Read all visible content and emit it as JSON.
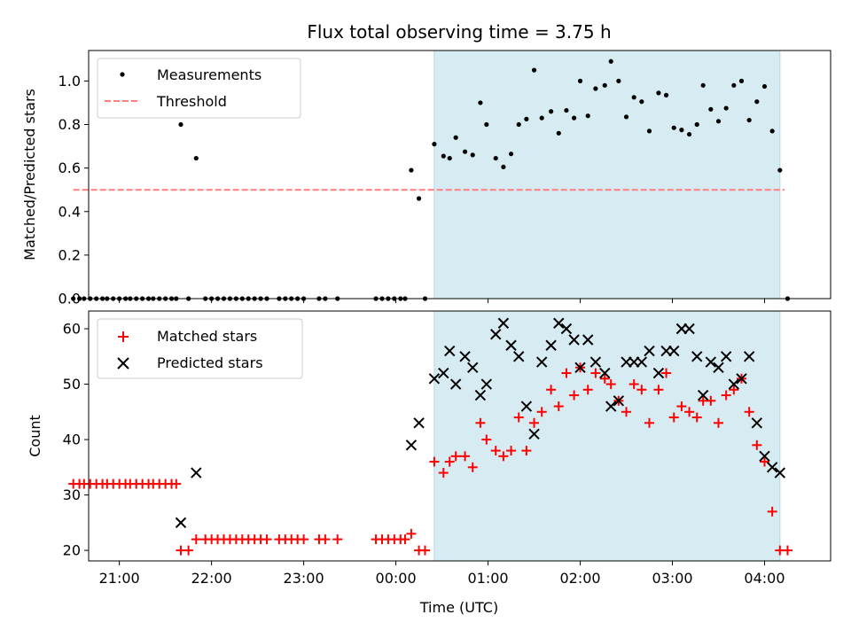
{
  "chart_data": {
    "title": "Flux total observing time = 3.75 h",
    "xlabel": "Time (UTC)",
    "xlim": [
      "20:40",
      "04:43"
    ],
    "x_ticks": [
      "21:00",
      "22:00",
      "23:00",
      "00:00",
      "01:00",
      "02:00",
      "03:00",
      "04:00"
    ],
    "shaded_interval": [
      "00:25",
      "04:10"
    ],
    "colors": {
      "shade": "#add8e6",
      "measurements": "#000000",
      "threshold": "#ff7f7f",
      "matched": "#ff0000",
      "predicted": "#000000"
    },
    "top": {
      "type": "scatter",
      "ylabel": "Matched/Predicted stars",
      "ylim": [
        0.0,
        1.14
      ],
      "y_ticks": [
        "0.0",
        "0.2",
        "0.4",
        "0.6",
        "0.8",
        "1.0"
      ],
      "legend": {
        "position": "top-left",
        "entries": [
          "Measurements",
          "Threshold"
        ]
      },
      "threshold": {
        "value": 0.5,
        "x_range": [
          "20:30",
          "04:13"
        ]
      },
      "measurements": [
        [
          "20:30",
          0
        ],
        [
          "20:34",
          0
        ],
        [
          "20:37",
          0
        ],
        [
          "20:41",
          0
        ],
        [
          "20:45",
          0
        ],
        [
          "20:49",
          0
        ],
        [
          "20:52",
          0
        ],
        [
          "20:56",
          0
        ],
        [
          "21:00",
          0
        ],
        [
          "21:04",
          0
        ],
        [
          "21:07",
          0
        ],
        [
          "21:11",
          0
        ],
        [
          "21:15",
          0
        ],
        [
          "21:19",
          0
        ],
        [
          "21:22",
          0
        ],
        [
          "21:26",
          0
        ],
        [
          "21:30",
          0
        ],
        [
          "21:34",
          0
        ],
        [
          "21:37",
          0
        ],
        [
          "21:40",
          0.8
        ],
        [
          "21:45",
          0
        ],
        [
          "21:50",
          0.645
        ],
        [
          "21:56",
          0
        ],
        [
          "22:00",
          0
        ],
        [
          "22:04",
          0
        ],
        [
          "22:08",
          0
        ],
        [
          "22:12",
          0
        ],
        [
          "22:16",
          0
        ],
        [
          "22:20",
          0
        ],
        [
          "22:24",
          0
        ],
        [
          "22:28",
          0
        ],
        [
          "22:32",
          0
        ],
        [
          "22:36",
          0
        ],
        [
          "22:44",
          0
        ],
        [
          "22:48",
          0
        ],
        [
          "22:52",
          0
        ],
        [
          "22:56",
          0
        ],
        [
          "23:00",
          0
        ],
        [
          "23:10",
          0
        ],
        [
          "23:14",
          0
        ],
        [
          "23:22",
          0
        ],
        [
          "23:47",
          0
        ],
        [
          "23:51",
          0
        ],
        [
          "23:55",
          0
        ],
        [
          "23:59",
          0
        ],
        [
          "00:03",
          0
        ],
        [
          "00:06",
          0
        ],
        [
          "00:10",
          0.59
        ],
        [
          "00:15",
          0.46
        ],
        [
          "00:19",
          0
        ],
        [
          "00:25",
          0.71
        ],
        [
          "00:31",
          0.655
        ],
        [
          "00:35",
          0.645
        ],
        [
          "00:39",
          0.74
        ],
        [
          "00:45",
          0.675
        ],
        [
          "00:50",
          0.66
        ],
        [
          "00:55",
          0.9
        ],
        [
          "00:59",
          0.8
        ],
        [
          "01:05",
          0.645
        ],
        [
          "01:10",
          0.605
        ],
        [
          "01:15",
          0.665
        ],
        [
          "01:20",
          0.8
        ],
        [
          "01:25",
          0.825
        ],
        [
          "01:30",
          1.05
        ],
        [
          "01:35",
          0.83
        ],
        [
          "01:41",
          0.86
        ],
        [
          "01:46",
          0.76
        ],
        [
          "01:51",
          0.865
        ],
        [
          "01:56",
          0.83
        ],
        [
          "02:00",
          1.0
        ],
        [
          "02:05",
          0.84
        ],
        [
          "02:10",
          0.965
        ],
        [
          "02:16",
          0.98
        ],
        [
          "02:20",
          1.09
        ],
        [
          "02:25",
          1.0
        ],
        [
          "02:30",
          0.835
        ],
        [
          "02:35",
          0.925
        ],
        [
          "02:40",
          0.905
        ],
        [
          "02:45",
          0.77
        ],
        [
          "02:51",
          0.945
        ],
        [
          "02:56",
          0.935
        ],
        [
          "03:01",
          0.785
        ],
        [
          "03:06",
          0.775
        ],
        [
          "03:11",
          0.755
        ],
        [
          "03:16",
          0.8
        ],
        [
          "03:20",
          0.98
        ],
        [
          "03:25",
          0.87
        ],
        [
          "03:30",
          0.815
        ],
        [
          "03:35",
          0.875
        ],
        [
          "03:40",
          0.98
        ],
        [
          "03:45",
          1.0
        ],
        [
          "03:50",
          0.82
        ],
        [
          "03:55",
          0.905
        ],
        [
          "04:00",
          0.975
        ],
        [
          "04:05",
          0.77
        ],
        [
          "04:10",
          0.59
        ],
        [
          "04:15",
          0
        ]
      ]
    },
    "bottom": {
      "type": "scatter",
      "ylabel": "Count",
      "ylim": [
        18.1,
        63.2
      ],
      "y_ticks": [
        "20",
        "30",
        "40",
        "50",
        "60"
      ],
      "legend": {
        "position": "top-left",
        "entries": [
          "Matched stars",
          "Predicted stars"
        ]
      },
      "matched": [
        [
          "20:30",
          32
        ],
        [
          "20:34",
          32
        ],
        [
          "20:37",
          32
        ],
        [
          "20:41",
          32
        ],
        [
          "20:45",
          32
        ],
        [
          "20:49",
          32
        ],
        [
          "20:52",
          32
        ],
        [
          "20:56",
          32
        ],
        [
          "21:00",
          32
        ],
        [
          "21:04",
          32
        ],
        [
          "21:07",
          32
        ],
        [
          "21:11",
          32
        ],
        [
          "21:15",
          32
        ],
        [
          "21:19",
          32
        ],
        [
          "21:22",
          32
        ],
        [
          "21:26",
          32
        ],
        [
          "21:30",
          32
        ],
        [
          "21:34",
          32
        ],
        [
          "21:37",
          32
        ],
        [
          "21:40",
          20
        ],
        [
          "21:45",
          20
        ],
        [
          "21:50",
          22
        ],
        [
          "21:56",
          22
        ],
        [
          "22:00",
          22
        ],
        [
          "22:04",
          22
        ],
        [
          "22:08",
          22
        ],
        [
          "22:12",
          22
        ],
        [
          "22:16",
          22
        ],
        [
          "22:20",
          22
        ],
        [
          "22:24",
          22
        ],
        [
          "22:28",
          22
        ],
        [
          "22:32",
          22
        ],
        [
          "22:36",
          22
        ],
        [
          "22:44",
          22
        ],
        [
          "22:48",
          22
        ],
        [
          "22:52",
          22
        ],
        [
          "22:56",
          22
        ],
        [
          "23:00",
          22
        ],
        [
          "23:10",
          22
        ],
        [
          "23:14",
          22
        ],
        [
          "23:22",
          22
        ],
        [
          "23:47",
          22
        ],
        [
          "23:51",
          22
        ],
        [
          "23:55",
          22
        ],
        [
          "23:59",
          22
        ],
        [
          "00:03",
          22
        ],
        [
          "00:06",
          22
        ],
        [
          "00:10",
          23
        ],
        [
          "00:15",
          20
        ],
        [
          "00:19",
          20
        ],
        [
          "00:25",
          36
        ],
        [
          "00:31",
          34
        ],
        [
          "00:35",
          36
        ],
        [
          "00:39",
          37
        ],
        [
          "00:45",
          37
        ],
        [
          "00:50",
          35
        ],
        [
          "00:55",
          43
        ],
        [
          "00:59",
          40
        ],
        [
          "01:05",
          38
        ],
        [
          "01:10",
          37
        ],
        [
          "01:15",
          38
        ],
        [
          "01:20",
          44
        ],
        [
          "01:25",
          38
        ],
        [
          "01:30",
          43
        ],
        [
          "01:35",
          45
        ],
        [
          "01:41",
          49
        ],
        [
          "01:46",
          46
        ],
        [
          "01:51",
          52
        ],
        [
          "01:56",
          48
        ],
        [
          "02:00",
          53
        ],
        [
          "02:05",
          49
        ],
        [
          "02:10",
          52
        ],
        [
          "02:16",
          51
        ],
        [
          "02:20",
          50
        ],
        [
          "02:25",
          47
        ],
        [
          "02:30",
          45
        ],
        [
          "02:35",
          50
        ],
        [
          "02:40",
          49
        ],
        [
          "02:45",
          43
        ],
        [
          "02:51",
          49
        ],
        [
          "02:56",
          52
        ],
        [
          "03:01",
          44
        ],
        [
          "03:06",
          46
        ],
        [
          "03:11",
          45
        ],
        [
          "03:16",
          44
        ],
        [
          "03:20",
          47
        ],
        [
          "03:25",
          47
        ],
        [
          "03:30",
          43
        ],
        [
          "03:35",
          48
        ],
        [
          "03:40",
          49
        ],
        [
          "03:45",
          51
        ],
        [
          "03:50",
          45
        ],
        [
          "03:55",
          39
        ],
        [
          "04:00",
          36
        ],
        [
          "04:05",
          27
        ],
        [
          "04:10",
          20
        ],
        [
          "04:15",
          20
        ]
      ],
      "predicted": [
        [
          "21:40",
          25
        ],
        [
          "21:50",
          34
        ],
        [
          "00:10",
          39
        ],
        [
          "00:15",
          43
        ],
        [
          "00:25",
          51
        ],
        [
          "00:31",
          52
        ],
        [
          "00:35",
          56
        ],
        [
          "00:39",
          50
        ],
        [
          "00:45",
          55
        ],
        [
          "00:50",
          53
        ],
        [
          "00:55",
          48
        ],
        [
          "00:59",
          50
        ],
        [
          "01:05",
          59
        ],
        [
          "01:10",
          61
        ],
        [
          "01:15",
          57
        ],
        [
          "01:20",
          55
        ],
        [
          "01:25",
          46
        ],
        [
          "01:30",
          41
        ],
        [
          "01:35",
          54
        ],
        [
          "01:41",
          57
        ],
        [
          "01:46",
          61
        ],
        [
          "01:51",
          60
        ],
        [
          "01:56",
          58
        ],
        [
          "02:00",
          53
        ],
        [
          "02:05",
          58
        ],
        [
          "02:10",
          54
        ],
        [
          "02:16",
          52
        ],
        [
          "02:20",
          46
        ],
        [
          "02:25",
          47
        ],
        [
          "02:30",
          54
        ],
        [
          "02:35",
          54
        ],
        [
          "02:40",
          54
        ],
        [
          "02:45",
          56
        ],
        [
          "02:51",
          52
        ],
        [
          "02:56",
          56
        ],
        [
          "03:01",
          56
        ],
        [
          "03:06",
          60
        ],
        [
          "03:11",
          60
        ],
        [
          "03:16",
          55
        ],
        [
          "03:20",
          48
        ],
        [
          "03:25",
          54
        ],
        [
          "03:30",
          53
        ],
        [
          "03:35",
          55
        ],
        [
          "03:40",
          50
        ],
        [
          "03:45",
          51
        ],
        [
          "03:50",
          55
        ],
        [
          "03:55",
          43
        ],
        [
          "04:00",
          37
        ],
        [
          "04:05",
          35
        ],
        [
          "04:10",
          34
        ]
      ]
    }
  }
}
